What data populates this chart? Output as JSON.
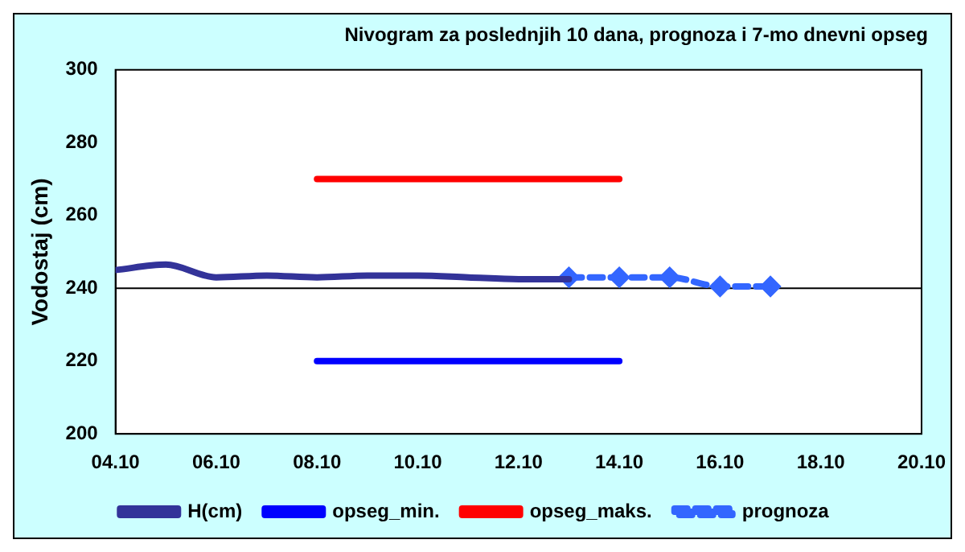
{
  "chart_data": {
    "type": "line",
    "title": "Nivogram za poslednjih 10 dana, prognoza i 7-mo dnevni opseg",
    "ylabel": "Vodostaj (cm)",
    "series": [
      {
        "name": "H(cm)",
        "color": "#333399",
        "x": [
          "--10-04",
          "--10-05",
          "--10-06",
          "--10-07",
          "--10-08",
          "--10-09",
          "--10-10",
          "--10-11",
          "--10-12",
          "--10-13"
        ],
        "values": [
          245,
          246.5,
          243,
          243.5,
          243,
          243.5,
          243.5,
          243,
          242.5,
          242.5
        ]
      },
      {
        "name": "opseg_min.",
        "color": "#0000ff",
        "x": [
          "--10-08",
          "--10-14"
        ],
        "values": [
          220,
          220
        ]
      },
      {
        "name": "opseg_maks.",
        "color": "#ff0000",
        "x": [
          "--10-08",
          "--10-14"
        ],
        "values": [
          270,
          270
        ]
      },
      {
        "name": "prognoza",
        "color": "#3366ff",
        "x": [
          "--10-13",
          "--10-14",
          "--10-15",
          "--10-16",
          "--10-17"
        ],
        "values": [
          243,
          243,
          243,
          240.5,
          240.5
        ],
        "marker": "diamond",
        "line_style": "dashed"
      }
    ],
    "xlim": [
      "--10-04",
      "--10-20"
    ],
    "xticks": [
      {
        "value": "--10-04",
        "label": "04.10"
      },
      {
        "value": "--10-06",
        "label": "06.10"
      },
      {
        "value": "--10-08",
        "label": "08.10"
      },
      {
        "value": "--10-10",
        "label": "10.10"
      },
      {
        "value": "--10-12",
        "label": "12.10"
      },
      {
        "value": "--10-14",
        "label": "14.10"
      },
      {
        "value": "--10-16",
        "label": "16.10"
      },
      {
        "value": "--10-18",
        "label": "18.10"
      },
      {
        "value": "--10-20",
        "label": "20.10"
      }
    ],
    "ylim": [
      200,
      300
    ],
    "yticks": [
      200,
      220,
      240,
      260,
      280,
      300
    ],
    "ref_lines": [
      {
        "axis": "y",
        "value": 240,
        "color": "#000000"
      }
    ],
    "grid": false,
    "legend": "bottom",
    "marker": "none",
    "line_style": "solid"
  }
}
